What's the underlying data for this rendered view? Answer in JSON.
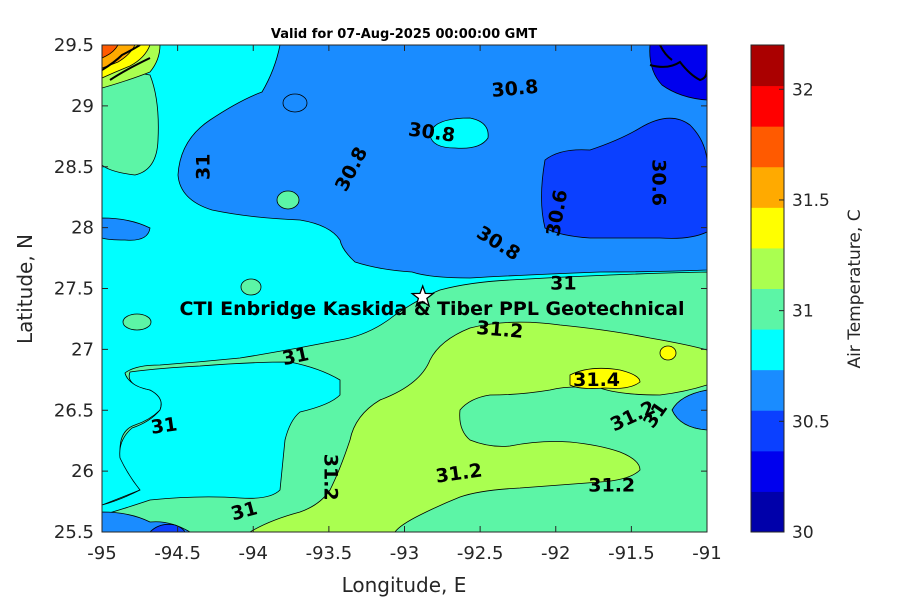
{
  "chart_data": {
    "type": "heatmap",
    "title": "Valid for 07-Aug-2025 00:00:00 GMT",
    "xlabel": "Longitude, E",
    "ylabel": "Latitude, N",
    "xlim": [
      -95,
      -91
    ],
    "ylim": [
      25.5,
      29.5
    ],
    "x_ticks": [
      "-95",
      "-94.5",
      "-94",
      "-93.5",
      "-93",
      "-92.5",
      "-92",
      "-91.5",
      "-91"
    ],
    "y_ticks": [
      "25.5",
      "26",
      "26.5",
      "27",
      "27.5",
      "28",
      "28.5",
      "29",
      "29.5"
    ],
    "colorbar": {
      "label": "Air Temperature, C",
      "range": [
        30,
        32.2
      ],
      "ticks": [
        "30",
        "30.5",
        "31",
        "31.5",
        "32"
      ],
      "colors": [
        "#0000aa",
        "#0000ee",
        "#0b40ff",
        "#1a8cff",
        "#00ffff",
        "#5cf5a6",
        "#aaff50",
        "#ffff00",
        "#ffaa00",
        "#ff5a00",
        "#ff0000",
        "#aa0000"
      ]
    },
    "grid": false,
    "contour_labels": [
      {
        "text": "30.8",
        "lon": -92.27,
        "lat": 29.14,
        "angle": -5
      },
      {
        "text": "30.8",
        "lon": -92.82,
        "lat": 28.78,
        "angle": 8
      },
      {
        "text": "30.8",
        "lon": -93.35,
        "lat": 28.48,
        "angle": -62
      },
      {
        "text": "30.6",
        "lon": -91.99,
        "lat": 28.12,
        "angle": -80
      },
      {
        "text": "30.6",
        "lon": -91.32,
        "lat": 28.37,
        "angle": 90
      },
      {
        "text": "30.8",
        "lon": -92.38,
        "lat": 27.87,
        "angle": 32
      },
      {
        "text": "31",
        "lon": -91.95,
        "lat": 27.54,
        "angle": 0
      },
      {
        "text": "31",
        "lon": -94.33,
        "lat": 28.5,
        "angle": -90
      },
      {
        "text": "31.2",
        "lon": -92.37,
        "lat": 27.16,
        "angle": 5
      },
      {
        "text": "31",
        "lon": -93.72,
        "lat": 26.94,
        "angle": -12
      },
      {
        "text": "31.4",
        "lon": -91.73,
        "lat": 26.75,
        "angle": 0
      },
      {
        "text": "31.2",
        "lon": -91.49,
        "lat": 26.45,
        "angle": -25
      },
      {
        "text": "31",
        "lon": -91.34,
        "lat": 26.46,
        "angle": -55
      },
      {
        "text": "31",
        "lon": -94.59,
        "lat": 26.37,
        "angle": -8
      },
      {
        "text": "31.2",
        "lon": -93.49,
        "lat": 25.95,
        "angle": 90
      },
      {
        "text": "31.2",
        "lon": -92.64,
        "lat": 25.98,
        "angle": -8
      },
      {
        "text": "31.2",
        "lon": -91.63,
        "lat": 25.88,
        "angle": 0
      },
      {
        "text": "31",
        "lon": -94.06,
        "lat": 25.67,
        "angle": -15
      }
    ],
    "site": {
      "name": "CTI Enbridge  Kaskida & Tiber PPL Geotechnical",
      "lon": -92.88,
      "lat": 27.43
    }
  }
}
